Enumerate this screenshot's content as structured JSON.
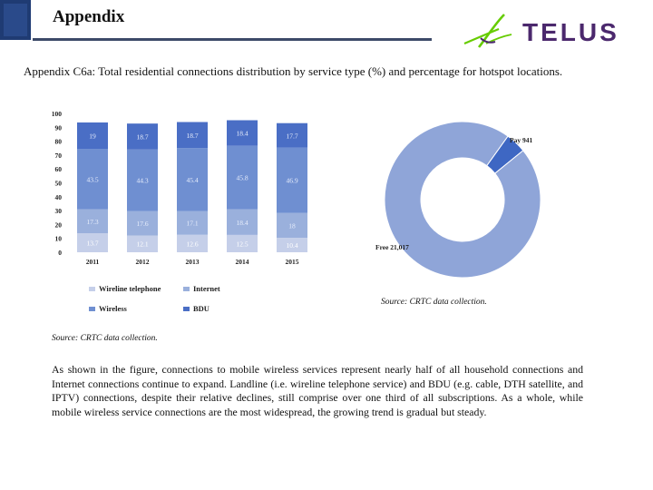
{
  "slide": {
    "title": "Appendix",
    "subtitle": "Appendix C6a: Total residential connections distribution by service type (%) and percentage for hotspot locations.",
    "logo_text": "TELUS",
    "source_right": "Source: CRTC data collection.",
    "source_left": "Source: CRTC data collection.",
    "body": "As shown in the figure, connections to mobile wireless services represent nearly half of all household connections and Internet connections continue to expand. Landline (i.e. wireline telephone service) and BDU (e.g. cable, DTH satellite, and IPTV) connections, despite their relative declines, still comprise over one third of all subscriptions. As a whole, while mobile wireless service connections are the most widespread, the growing trend is gradual but steady."
  },
  "colors": {
    "brand_green": "#66cc00",
    "brand_purple": "#4b286d",
    "wireline": "#c5cfe9",
    "internet": "#9ab0dc",
    "wireless": "#6f8fd1",
    "bdu": "#4a6ec5",
    "donut_free": "#8fa5d8",
    "donut_pay": "#3e67c3"
  },
  "chart_data": [
    {
      "type": "bar",
      "stacked": true,
      "categories": [
        "2011",
        "2012",
        "2013",
        "2014",
        "2015"
      ],
      "series": [
        {
          "name": "Wireline telephone",
          "color": "#c5cfe9",
          "values": [
            13.7,
            12.1,
            12.6,
            12.5,
            10.4
          ]
        },
        {
          "name": "Internet",
          "color": "#9ab0dc",
          "values": [
            17.3,
            17.6,
            17.1,
            18.4,
            18
          ]
        },
        {
          "name": "Wireless",
          "color": "#6f8fd1",
          "values": [
            43.5,
            44.3,
            45.4,
            45.8,
            46.9
          ]
        },
        {
          "name": "BDU",
          "color": "#4a6ec5",
          "values": [
            19,
            18.7,
            18.7,
            18.4,
            17.7
          ]
        }
      ],
      "labels": [
        [
          "13.7",
          "12.1",
          "12.6",
          "12.5",
          "10.4"
        ],
        [
          "17.3",
          "17.6",
          "17.1",
          "18.4",
          "18"
        ],
        [
          "43.5",
          "44.3",
          "45.4",
          "45.8",
          "46.9"
        ],
        [
          "19",
          "18.7",
          "18.7",
          "18.4",
          "17.7"
        ]
      ],
      "yticks": [
        "0",
        "10",
        "20",
        "30",
        "40",
        "50",
        "60",
        "70",
        "80",
        "90",
        "100"
      ],
      "ylim": [
        0,
        100
      ],
      "legend": [
        "Wireline telephone",
        "Internet",
        "Wireless",
        "BDU"
      ]
    },
    {
      "type": "pie",
      "donut": true,
      "slices": [
        {
          "name": "Free",
          "value": 21017,
          "label": "Free  21,017",
          "color": "#8fa5d8"
        },
        {
          "name": "Pay",
          "value": 941,
          "label": "Pay 941",
          "color": "#3e67c3"
        }
      ]
    }
  ]
}
